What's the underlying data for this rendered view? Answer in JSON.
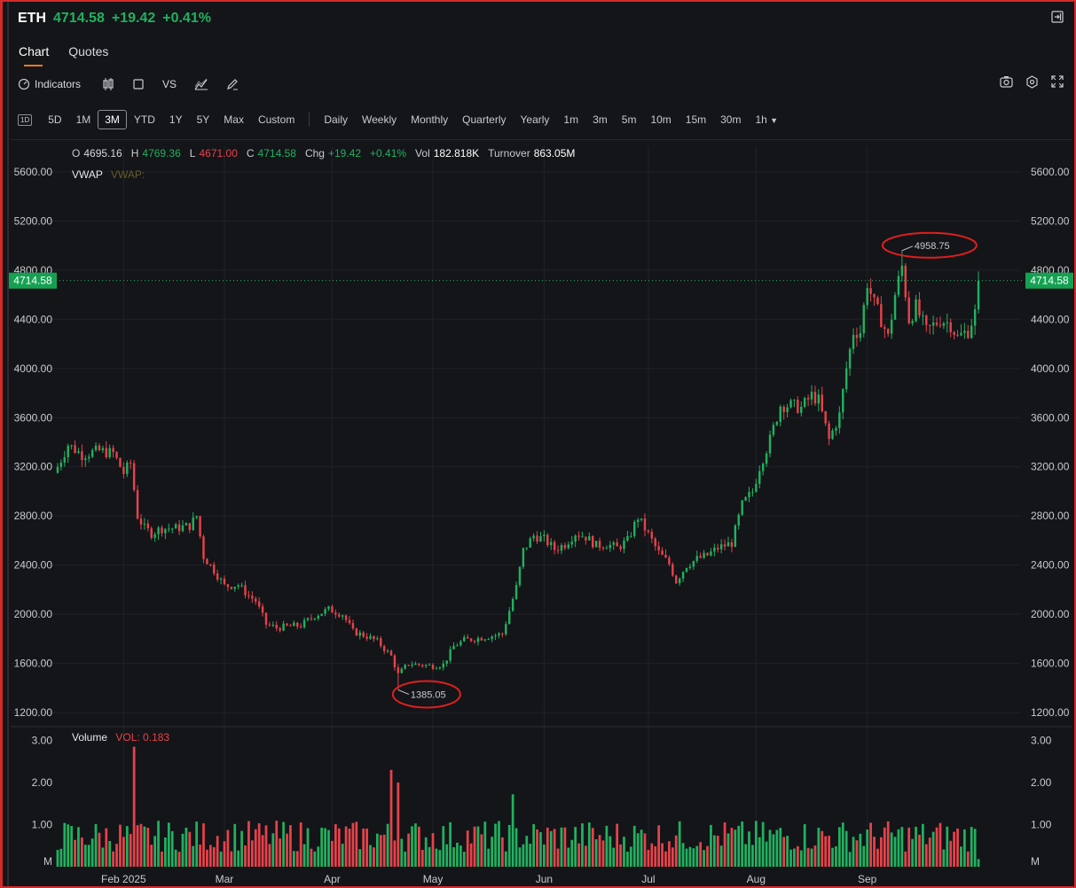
{
  "header": {
    "symbol": "ETH",
    "price": "4714.58",
    "change": "+19.42",
    "change_pct": "+0.41%"
  },
  "tabs": [
    {
      "label": "Chart",
      "active": true
    },
    {
      "label": "Quotes",
      "active": false
    }
  ],
  "toolbar": {
    "indicators_label": "Indicators",
    "vs_label": "VS",
    "icons": [
      "gauge-icon",
      "candlestick-icon",
      "square-icon",
      "vs-icon",
      "line-draw-icon",
      "pencil-icon",
      "camera-icon",
      "gear-icon",
      "fullscreen-icon"
    ]
  },
  "ranges": {
    "first_icon": "1D",
    "periods": [
      "5D",
      "1M",
      "3M",
      "YTD",
      "1Y",
      "5Y",
      "Max",
      "Custom"
    ],
    "selected": "3M",
    "intervals": [
      "Daily",
      "Weekly",
      "Monthly",
      "Quarterly",
      "Yearly",
      "1m",
      "3m",
      "5m",
      "10m",
      "15m",
      "30m",
      "1h"
    ]
  },
  "ohlc": {
    "o_label": "O",
    "o": "4695.16",
    "h_label": "H",
    "h": "4769.36",
    "l_label": "L",
    "l": "4671.00",
    "c_label": "C",
    "c": "4714.58",
    "chg_label": "Chg",
    "chg": "+19.42",
    "chg_pct": "+0.41%",
    "vol_label": "Vol",
    "vol": "182.818K",
    "turnover_label": "Turnover",
    "turnover": "863.05M"
  },
  "vwap": {
    "label": "VWAP",
    "value_label": "VWAP:"
  },
  "volume_legend": {
    "label": "Volume",
    "value": "VOL: 0.183"
  },
  "colors": {
    "up": "#21b15f",
    "down": "#e8424a",
    "accent": "#f07a1a",
    "annotation": "#e01e1e"
  },
  "chart_data": [
    {
      "type": "candlestick",
      "title": "",
      "ylim": [
        1100,
        5700
      ],
      "y_ticks": [
        "5600.00",
        "5200.00",
        "4800.00",
        "4400.00",
        "4000.00",
        "3600.00",
        "3200.00",
        "2800.00",
        "2400.00",
        "2000.00",
        "1600.00",
        "1200.00"
      ],
      "x_ticks": [
        "Feb 2025",
        "Mar",
        "Apr",
        "May",
        "Jun",
        "Jul",
        "Aug",
        "Sep"
      ],
      "current_price_label": "4714.58",
      "annotations": [
        {
          "label": "4958.75",
          "kind": "high",
          "price": 4958.75
        },
        {
          "label": "1385.05",
          "kind": "low",
          "price": 1385.05
        }
      ],
      "anchors": [
        [
          0,
          3200
        ],
        [
          3,
          3380
        ],
        [
          7,
          3300
        ],
        [
          12,
          3330
        ],
        [
          16,
          3310
        ],
        [
          19,
          3150
        ],
        [
          21,
          3230
        ],
        [
          23,
          2800
        ],
        [
          25,
          2700
        ],
        [
          27,
          2660
        ],
        [
          30,
          2700
        ],
        [
          34,
          2700
        ],
        [
          38,
          2720
        ],
        [
          40,
          2800
        ],
        [
          42,
          2470
        ],
        [
          45,
          2360
        ],
        [
          48,
          2230
        ],
        [
          52,
          2240
        ],
        [
          55,
          2150
        ],
        [
          57,
          2110
        ],
        [
          60,
          1920
        ],
        [
          63,
          1890
        ],
        [
          66,
          1900
        ],
        [
          70,
          1910
        ],
        [
          74,
          1990
        ],
        [
          78,
          2040
        ],
        [
          82,
          2000
        ],
        [
          85,
          1860
        ],
        [
          89,
          1820
        ],
        [
          92,
          1780
        ],
        [
          96,
          1660
        ],
        [
          98,
          1510
        ],
        [
          101,
          1600
        ],
        [
          104,
          1590
        ],
        [
          108,
          1580
        ],
        [
          111,
          1590
        ],
        [
          114,
          1740
        ],
        [
          117,
          1790
        ],
        [
          120,
          1800
        ],
        [
          124,
          1820
        ],
        [
          128,
          1840
        ],
        [
          132,
          2220
        ],
        [
          134,
          2520
        ],
        [
          137,
          2640
        ],
        [
          140,
          2610
        ],
        [
          143,
          2530
        ],
        [
          146,
          2570
        ],
        [
          149,
          2660
        ],
        [
          152,
          2630
        ],
        [
          155,
          2560
        ],
        [
          158,
          2570
        ],
        [
          161,
          2540
        ],
        [
          164,
          2600
        ],
        [
          167,
          2790
        ],
        [
          170,
          2650
        ],
        [
          173,
          2500
        ],
        [
          176,
          2410
        ],
        [
          178,
          2270
        ],
        [
          181,
          2400
        ],
        [
          184,
          2450
        ],
        [
          187,
          2480
        ],
        [
          190,
          2540
        ],
        [
          194,
          2580
        ],
        [
          197,
          2890
        ],
        [
          200,
          3000
        ],
        [
          202,
          3200
        ],
        [
          205,
          3420
        ],
        [
          208,
          3700
        ],
        [
          211,
          3700
        ],
        [
          214,
          3680
        ],
        [
          217,
          3780
        ],
        [
          219,
          3740
        ],
        [
          222,
          3420
        ],
        [
          225,
          3620
        ],
        [
          227,
          4000
        ],
        [
          229,
          4300
        ],
        [
          231,
          4300
        ],
        [
          233,
          4700
        ],
        [
          235,
          4520
        ],
        [
          237,
          4400
        ],
        [
          239,
          4250
        ],
        [
          241,
          4600
        ],
        [
          243,
          4830
        ],
        [
          245,
          4400
        ],
        [
          247,
          4500
        ],
        [
          250,
          4300
        ],
        [
          254,
          4400
        ],
        [
          257,
          4360
        ],
        [
          259,
          4250
        ],
        [
          262,
          4310
        ],
        [
          264,
          4450
        ],
        [
          265,
          4714.58
        ]
      ],
      "volume": {
        "ylim": [
          0,
          3.2
        ],
        "y_ticks": [
          "3.00",
          "2.00",
          "1.00",
          "M"
        ],
        "last": 0.183
      }
    }
  ]
}
